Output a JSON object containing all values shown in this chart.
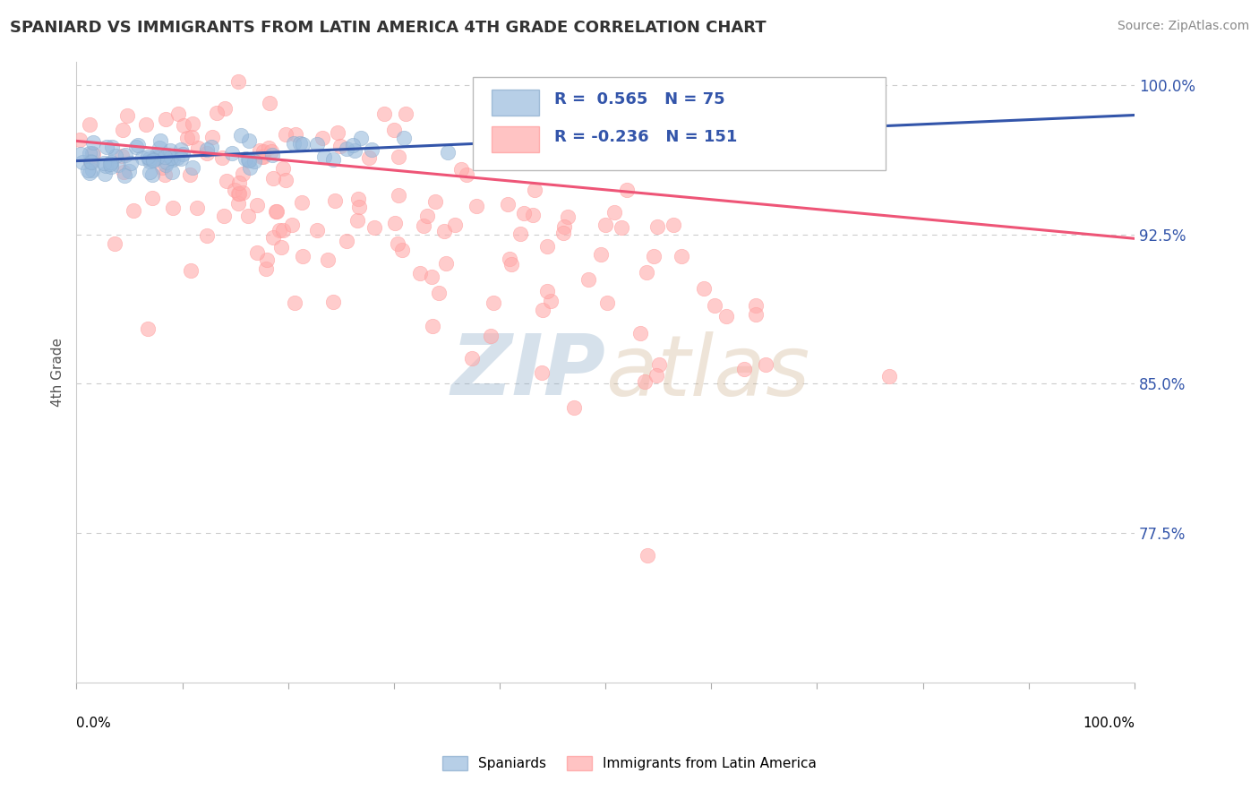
{
  "title": "SPANIARD VS IMMIGRANTS FROM LATIN AMERICA 4TH GRADE CORRELATION CHART",
  "source": "Source: ZipAtlas.com",
  "ylabel": "4th Grade",
  "right_yticks": [
    100.0,
    92.5,
    85.0,
    77.5
  ],
  "blue_R": 0.565,
  "blue_N": 75,
  "pink_R": -0.236,
  "pink_N": 151,
  "blue_color": "#99BBDD",
  "pink_color": "#FFAAAA",
  "blue_edge_color": "#88AACC",
  "pink_edge_color": "#FF9999",
  "blue_line_color": "#3355AA",
  "pink_line_color": "#EE5577",
  "legend_blue_label": "Spaniards",
  "legend_pink_label": "Immigrants from Latin America",
  "figsize": [
    14.06,
    8.92
  ],
  "dpi": 100,
  "xlim": [
    0,
    1.0
  ],
  "ylim": [
    0.7,
    1.012
  ],
  "blue_trend_start_y": 0.962,
  "blue_trend_end_y": 0.985,
  "pink_trend_start_y": 0.972,
  "pink_trend_end_y": 0.923
}
